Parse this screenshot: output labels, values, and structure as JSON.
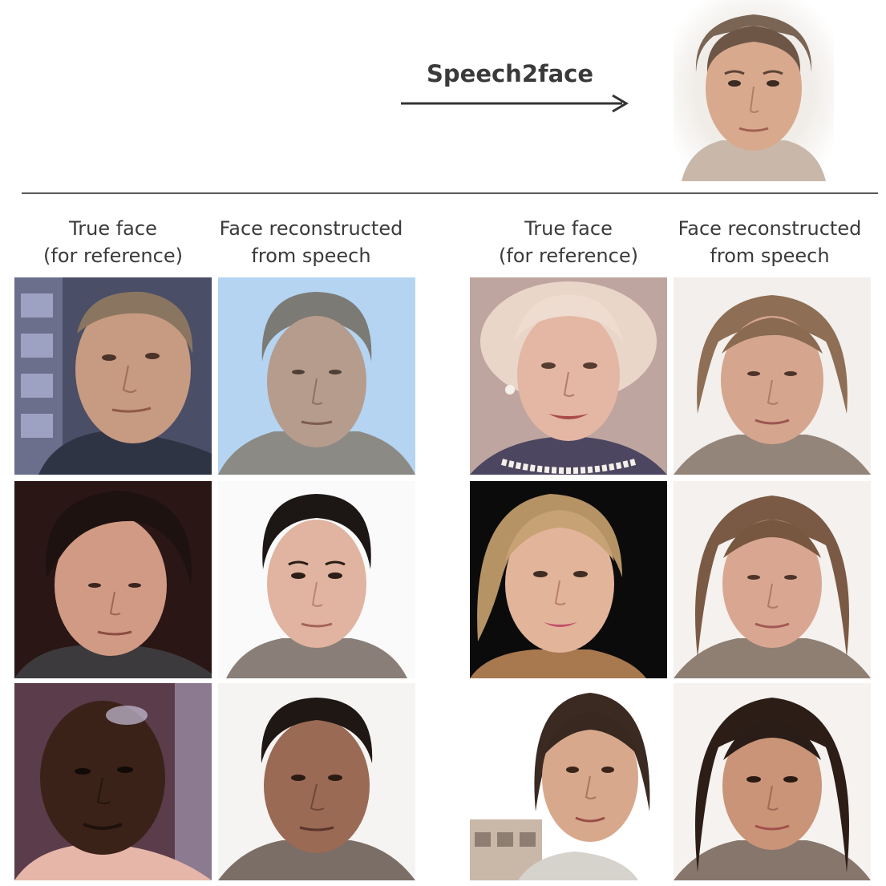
{
  "diagram": {
    "arrow_label": "Speech2face"
  },
  "column_headers": [
    {
      "line1": "True face",
      "line2": "(for reference)"
    },
    {
      "line1": "Face reconstructed",
      "line2": "from speech"
    },
    {
      "line1": "True face",
      "line2": "(for reference)"
    },
    {
      "line1": "Face reconstructed",
      "line2": "from speech"
    }
  ],
  "colors": {
    "waveform_teal": "#1e8fa6",
    "waveform_purple": "#5b5fa8",
    "arrow": "#333333",
    "divider": "#5a5a5a"
  }
}
